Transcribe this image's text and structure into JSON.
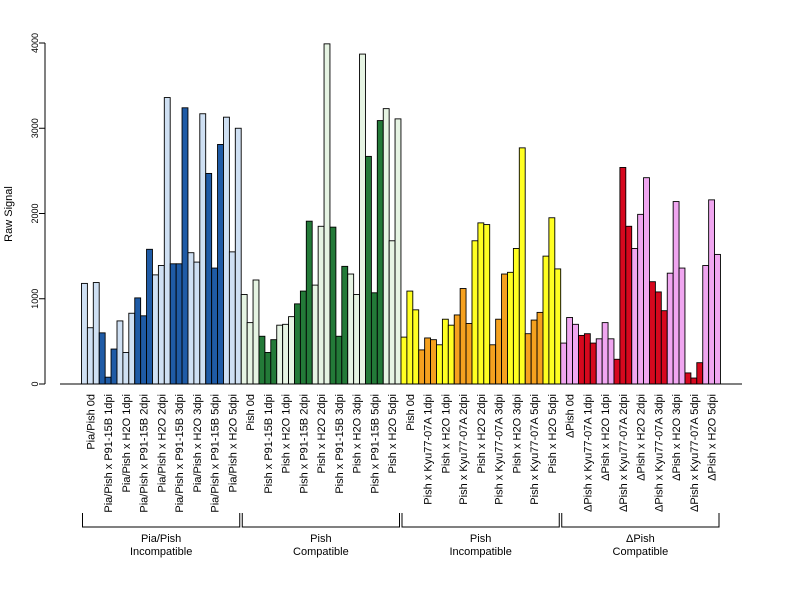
{
  "chart_data": {
    "type": "bar",
    "ylabel": "Raw Signal",
    "ylim": [
      0,
      4000
    ],
    "yticks": [
      0,
      1000,
      2000,
      3000,
      4000
    ],
    "groups": [
      {
        "name_line1": "Pia/Pish",
        "name_line2": "Incompatible",
        "light_color": "#cfe0f3",
        "dark_color": "#1f5ba6",
        "categories": [
          {
            "label": "Pia/Pish 0d",
            "values": [
              1180,
              660,
              1190
            ],
            "colors": [
              "light",
              "light",
              "light"
            ]
          },
          {
            "label": "Pia/Pish x P91-15B 1dpi",
            "values": [
              600,
              80,
              410
            ],
            "colors": [
              "dark",
              "dark",
              "dark"
            ]
          },
          {
            "label": "Pia/Pish x H2O 1dpi",
            "values": [
              740,
              370,
              830
            ],
            "colors": [
              "light",
              "light",
              "light"
            ]
          },
          {
            "label": "Pia/Pish x P91-15B 2dpi",
            "values": [
              1010,
              800,
              1580
            ],
            "colors": [
              "dark",
              "dark",
              "dark"
            ]
          },
          {
            "label": "Pia/Pish x H2O 2dpi",
            "values": [
              1280,
              1390,
              3360
            ],
            "colors": [
              "light",
              "light",
              "light"
            ]
          },
          {
            "label": "Pia/Pish x P91-15B 3dpi",
            "values": [
              1410,
              1410,
              3240
            ],
            "colors": [
              "dark",
              "dark",
              "dark"
            ]
          },
          {
            "label": "Pia/Pish x H2O 3dpi",
            "values": [
              1540,
              1430,
              3170
            ],
            "colors": [
              "light",
              "light",
              "light"
            ]
          },
          {
            "label": "Pia/Pish x P91-15B 5dpi",
            "values": [
              2470,
              1360,
              2810
            ],
            "colors": [
              "dark",
              "dark",
              "dark"
            ]
          },
          {
            "label": "Pia/Pish x H2O 5dpi",
            "values": [
              3130,
              1550,
              3000
            ],
            "colors": [
              "light",
              "light",
              "light"
            ]
          }
        ]
      },
      {
        "name_line1": "Pish",
        "name_line2": "Compatible",
        "light_color": "#e6f4e3",
        "dark_color": "#237a38",
        "categories": [
          {
            "label": "Pish 0d",
            "values": [
              1050,
              720,
              1220
            ],
            "colors": [
              "light",
              "light",
              "light"
            ]
          },
          {
            "label": "Pish x P91-15B 1dpi",
            "values": [
              560,
              370,
              520
            ],
            "colors": [
              "dark",
              "dark",
              "dark"
            ]
          },
          {
            "label": "Pish x H2O 1dpi",
            "values": [
              690,
              700,
              790
            ],
            "colors": [
              "light",
              "light",
              "light"
            ]
          },
          {
            "label": "Pish x P91-15B 2dpi",
            "values": [
              940,
              1090,
              1910
            ],
            "colors": [
              "dark",
              "dark",
              "dark"
            ]
          },
          {
            "label": "Pish x H2O 2dpi",
            "values": [
              1160,
              1850,
              3990
            ],
            "colors": [
              "light",
              "light",
              "light"
            ]
          },
          {
            "label": "Pish x P91-15B 3dpi",
            "values": [
              1840,
              560,
              1380
            ],
            "colors": [
              "dark",
              "dark",
              "dark"
            ]
          },
          {
            "label": "Pish x H2O 3dpi",
            "values": [
              1290,
              1050,
              3870
            ],
            "colors": [
              "light",
              "light",
              "light"
            ]
          },
          {
            "label": "Pish x P91-15B 5dpi",
            "values": [
              2670,
              1070,
              3090
            ],
            "colors": [
              "dark",
              "dark",
              "dark"
            ]
          },
          {
            "label": "Pish x H2O 5dpi",
            "values": [
              3230,
              1680,
              3110
            ],
            "colors": [
              "light",
              "light",
              "light"
            ]
          }
        ]
      },
      {
        "name_line1": "Pish",
        "name_line2": "Incompatible",
        "light_color": "#ffff22",
        "dark_color": "#f5a11f",
        "categories": [
          {
            "label": "Pish 0d",
            "values": [
              550,
              1090,
              870
            ],
            "colors": [
              "light",
              "light",
              "light"
            ]
          },
          {
            "label": "Pish x Kyu77-07A 1dpi",
            "values": [
              400,
              540,
              520
            ],
            "colors": [
              "dark",
              "dark",
              "dark"
            ]
          },
          {
            "label": "Pish x H2O 1dpi",
            "values": [
              460,
              760,
              690
            ],
            "colors": [
              "light",
              "light",
              "light"
            ]
          },
          {
            "label": "Pish x Kyu77-07A 2dpi",
            "values": [
              810,
              1120,
              710
            ],
            "colors": [
              "dark",
              "dark",
              "dark"
            ]
          },
          {
            "label": "Pish x H2O 2dpi",
            "values": [
              1680,
              1890,
              1870
            ],
            "colors": [
              "light",
              "light",
              "light"
            ]
          },
          {
            "label": "Pish x Kyu77-07A 3dpi",
            "values": [
              460,
              760,
              1290
            ],
            "colors": [
              "dark",
              "dark",
              "dark"
            ]
          },
          {
            "label": "Pish x H2O 3dpi",
            "values": [
              1310,
              1590,
              2770
            ],
            "colors": [
              "light",
              "light",
              "light"
            ]
          },
          {
            "label": "Pish x Kyu77-07A 5dpi",
            "values": [
              590,
              750,
              840
            ],
            "colors": [
              "dark",
              "dark",
              "dark"
            ]
          },
          {
            "label": "Pish x H2O 5dpi",
            "values": [
              1500,
              1950,
              1350
            ],
            "colors": [
              "light",
              "light",
              "light"
            ]
          }
        ]
      },
      {
        "name_line1": "ΔPish",
        "name_line2": "Compatible",
        "light_color": "#f0a6f0",
        "dark_color": "#d6081e",
        "categories": [
          {
            "label": "ΔPish 0d",
            "values": [
              480,
              780,
              700
            ],
            "colors": [
              "light",
              "light",
              "light"
            ]
          },
          {
            "label": "ΔPish x Kyu77-07A 1dpi",
            "values": [
              570,
              590,
              480
            ],
            "colors": [
              "dark",
              "dark",
              "dark"
            ]
          },
          {
            "label": "ΔPish x H2O 1dpi",
            "values": [
              530,
              720,
              530
            ],
            "colors": [
              "light",
              "light",
              "light"
            ]
          },
          {
            "label": "ΔPish x Kyu77-07A 2dpi",
            "values": [
              290,
              2540,
              1850
            ],
            "colors": [
              "dark",
              "dark",
              "dark"
            ]
          },
          {
            "label": "ΔPish x H2O 2dpi",
            "values": [
              1590,
              1990,
              2420
            ],
            "colors": [
              "light",
              "light",
              "light"
            ]
          },
          {
            "label": "ΔPish x Kyu77-07A 3dpi",
            "values": [
              1200,
              1080,
              860
            ],
            "colors": [
              "dark",
              "dark",
              "dark"
            ]
          },
          {
            "label": "ΔPish x H2O 3dpi",
            "values": [
              1300,
              2140,
              1360
            ],
            "colors": [
              "light",
              "light",
              "light"
            ]
          },
          {
            "label": "ΔPish x Kyu77-07A 5dpi",
            "values": [
              130,
              70,
              250
            ],
            "colors": [
              "dark",
              "dark",
              "dark"
            ]
          },
          {
            "label": "ΔPish x H2O 5dpi",
            "values": [
              1390,
              2160,
              1520
            ],
            "colors": [
              "light",
              "light",
              "light"
            ]
          }
        ]
      }
    ]
  }
}
